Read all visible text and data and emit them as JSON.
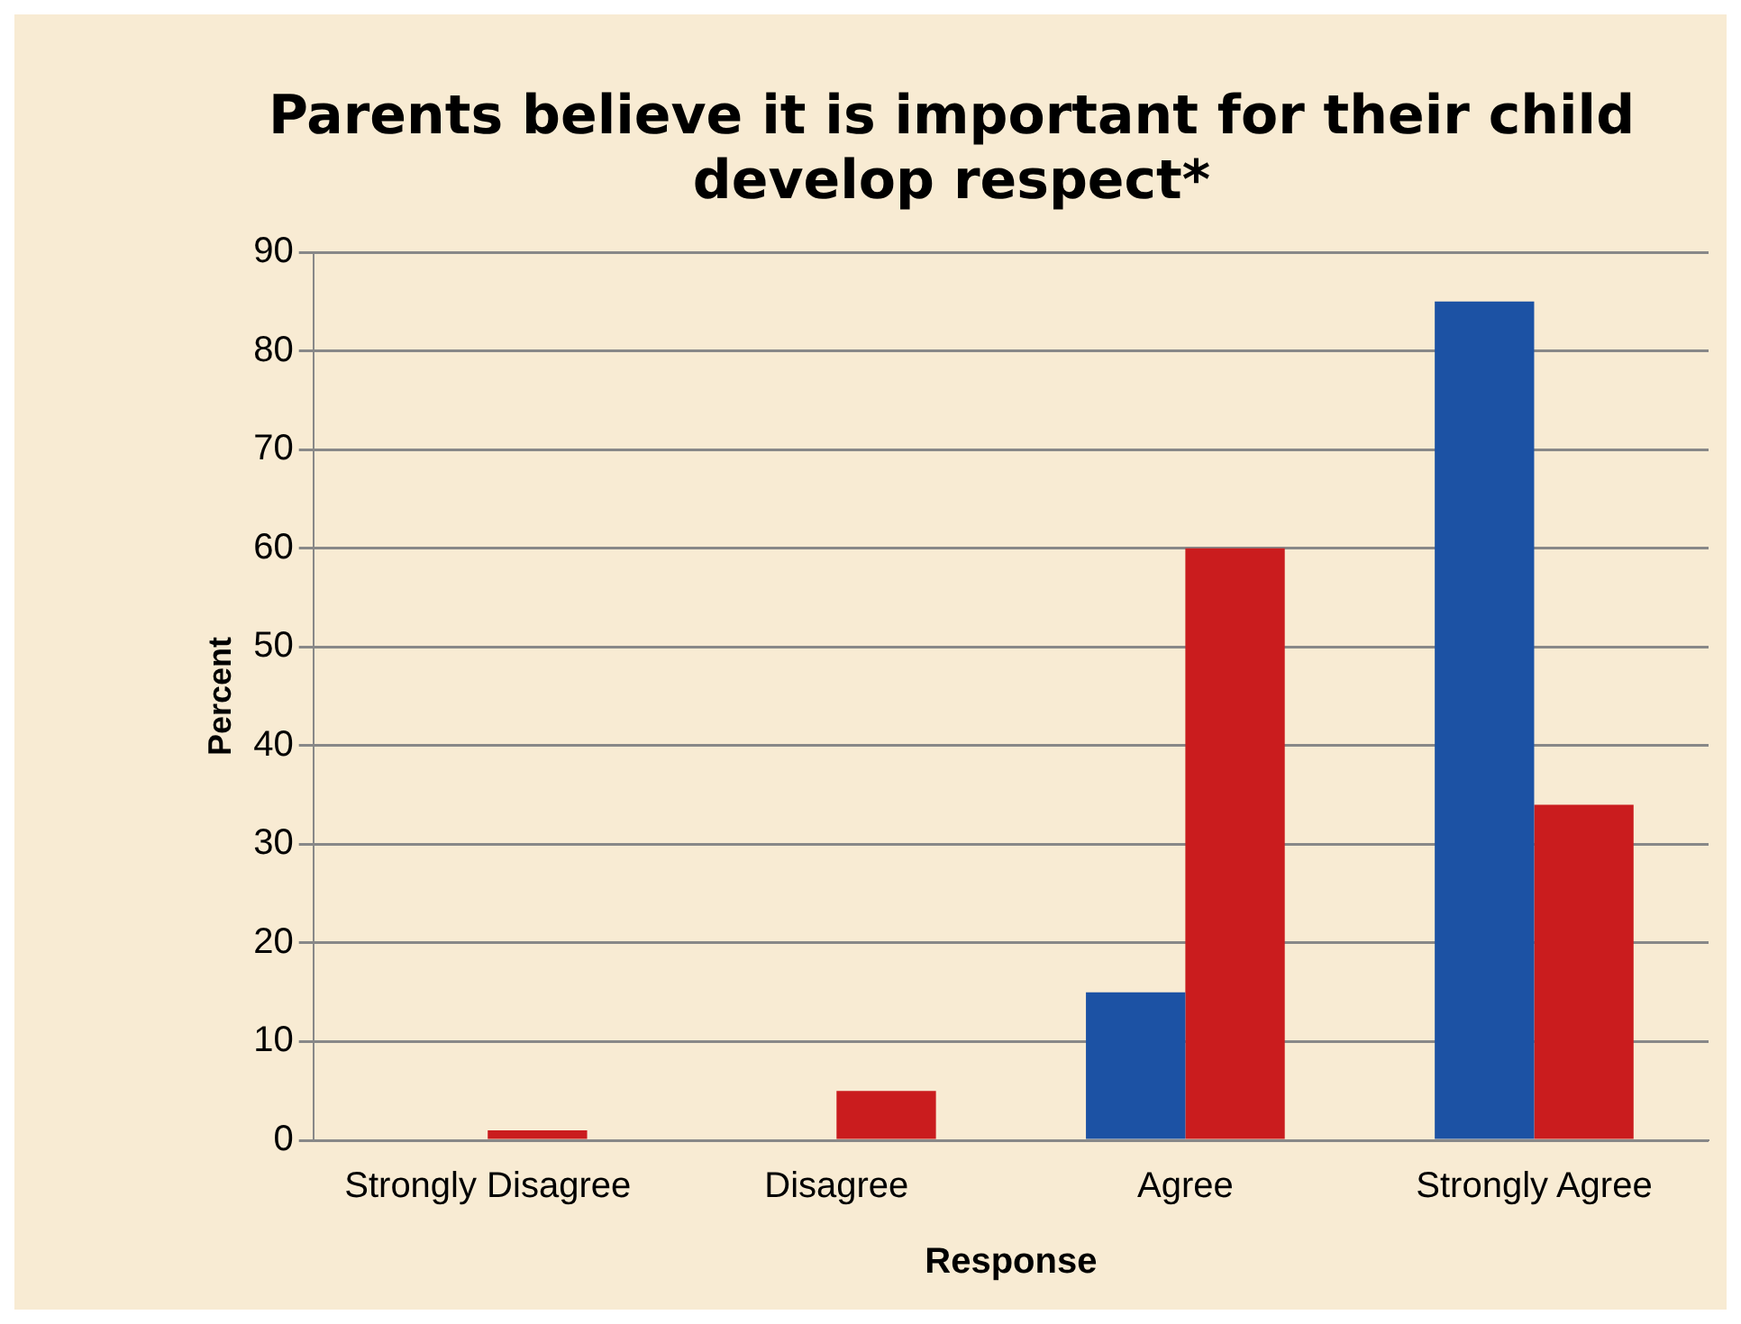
{
  "chart_data": {
    "type": "bar",
    "title": "Parents believe it is important for their child\ndevelop respect*",
    "xlabel": "Response",
    "ylabel": "Percent",
    "categories": [
      "Strongly Disagree",
      "Disagree",
      "Agree",
      "Strongly Agree"
    ],
    "series": [
      {
        "color": "#1c52a4",
        "values": [
          0,
          0,
          15,
          85
        ]
      },
      {
        "color": "#ca1c1e",
        "values": [
          1,
          5,
          60,
          34
        ]
      }
    ],
    "ylim": [
      0,
      90
    ],
    "yticks": [
      0,
      10,
      20,
      30,
      40,
      50,
      60,
      70,
      80,
      90
    ],
    "grid": "y",
    "legend": false
  }
}
